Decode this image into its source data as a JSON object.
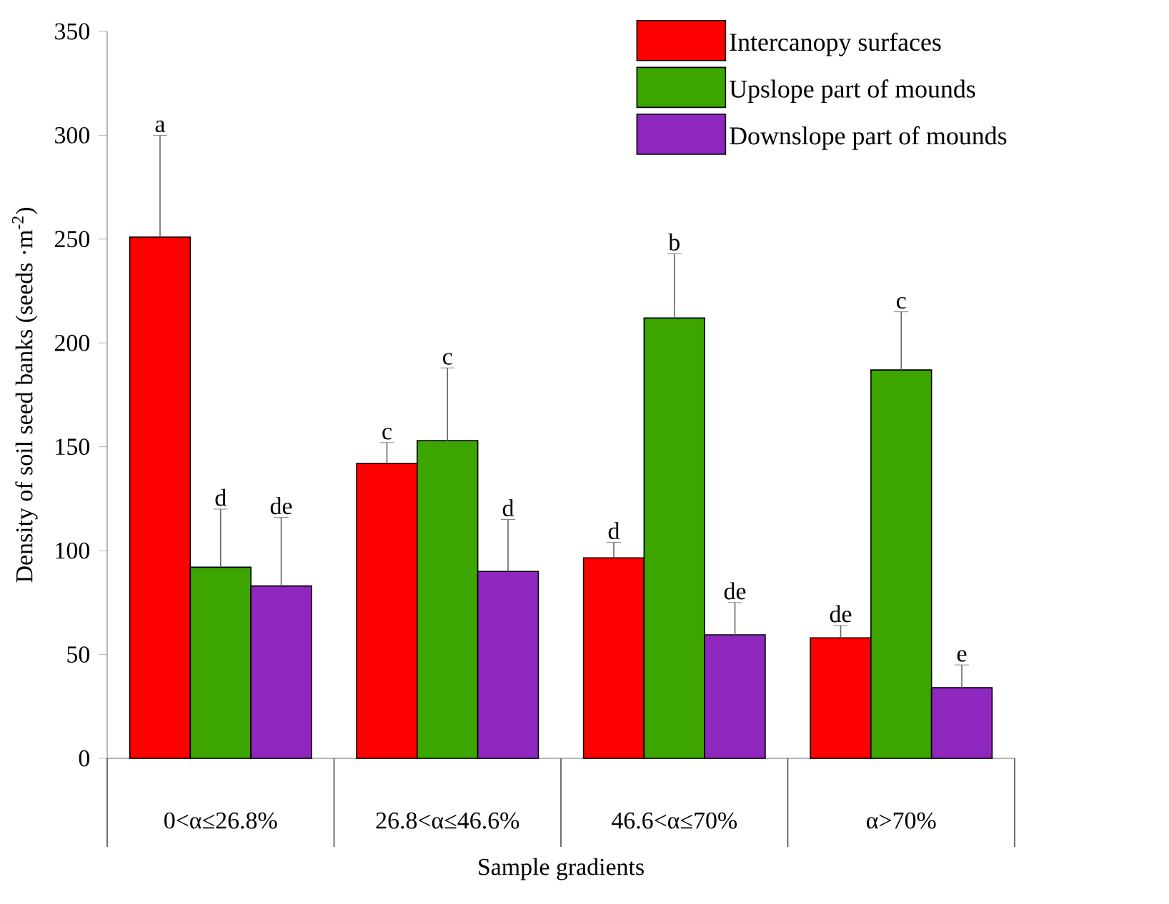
{
  "chart_data": {
    "type": "bar",
    "xlabel": "Sample gradients",
    "ylabel": "Density of soil seed banks (seeds ·m$^{-2}$)",
    "categories": [
      "0<α≤26.8%",
      "26.8<α≤46.6%",
      "46.6<α≤70%",
      "α>70%"
    ],
    "series": [
      {
        "name": "Intercanopy surfaces",
        "color": "#ff0000",
        "values": [
          251,
          142,
          96.5,
          58
        ],
        "errors": [
          49,
          10,
          7.5,
          6
        ]
      },
      {
        "name": "Upslope part of mounds",
        "color": "#3ca500",
        "values": [
          92,
          153,
          212,
          187
        ],
        "errors": [
          28,
          35,
          31,
          28
        ]
      },
      {
        "name": "Downslope part of mounds",
        "color": "#8e27bd",
        "values": [
          83,
          90,
          59.5,
          34
        ],
        "errors": [
          33,
          25,
          15.5,
          11
        ]
      }
    ],
    "annotations": [
      "a",
      "d",
      "de",
      "c",
      "c",
      "d",
      "d",
      "b",
      "de",
      "de",
      "c",
      "e"
    ],
    "ylim": [
      0,
      350
    ],
    "yticks": [
      0,
      50,
      100,
      150,
      200,
      250,
      300,
      350
    ],
    "legend": "top right"
  }
}
